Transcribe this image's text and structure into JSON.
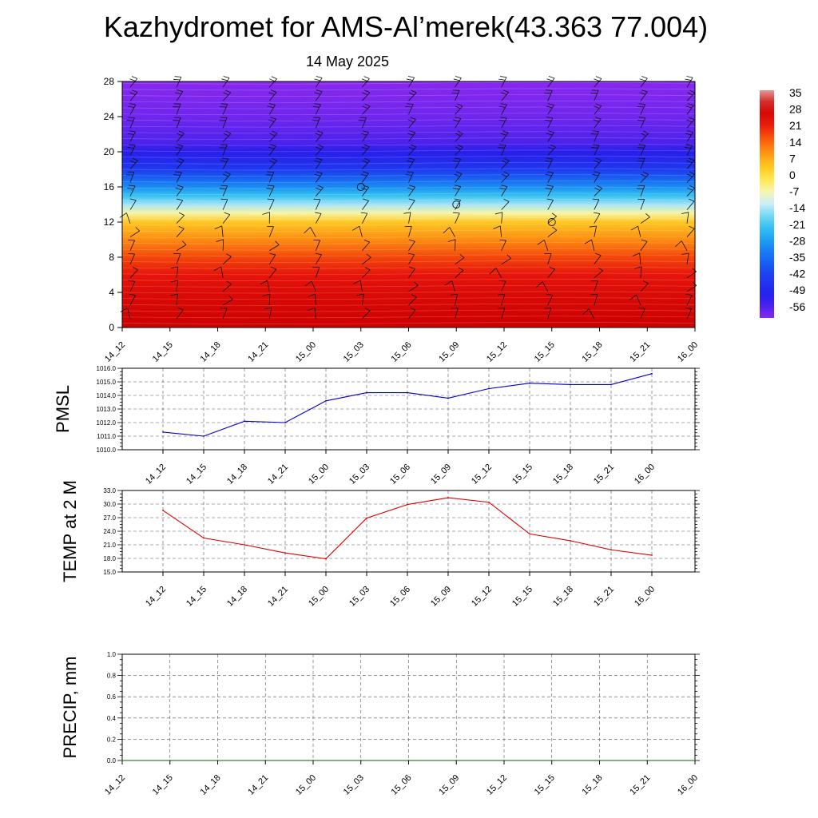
{
  "title": "Kazhydromet for AMS-Al’merek(43.363 77.004)",
  "subtitle": "14 May 2025",
  "time_labels": [
    "14_12",
    "14_15",
    "14_18",
    "14_21",
    "15_00",
    "15_03",
    "15_06",
    "15_09",
    "15_12",
    "15_15",
    "15_18",
    "15_21",
    "16_00"
  ],
  "chart_data": [
    {
      "type": "heatmap",
      "panel": "vertical temperature cross-section with wind barbs",
      "x": [
        "14_12",
        "14_15",
        "14_18",
        "14_21",
        "15_00",
        "15_03",
        "15_06",
        "15_09",
        "15_12",
        "15_15",
        "15_18",
        "15_21",
        "16_00"
      ],
      "ylim": [
        0,
        28
      ],
      "y_ticks": [
        "0",
        "4",
        "8",
        "12",
        "16",
        "20",
        "24",
        "28"
      ],
      "colorbar_labels": [
        "35",
        "28",
        "21",
        "14",
        "7",
        "0",
        "-7",
        "-14",
        "-21",
        "-28",
        "-35",
        "-42",
        "-49",
        "-56"
      ],
      "colorbar_range": [
        -63,
        35
      ],
      "temperature_profile": [
        {
          "y": 0,
          "value": 28
        },
        {
          "y": 2,
          "value": 26
        },
        {
          "y": 4,
          "value": 24
        },
        {
          "y": 6,
          "value": 21
        },
        {
          "y": 8,
          "value": 16
        },
        {
          "y": 10,
          "value": 9
        },
        {
          "y": 12,
          "value": 2
        },
        {
          "y": 13,
          "value": -8
        },
        {
          "y": 14,
          "value": -16
        },
        {
          "y": 15,
          "value": -24
        },
        {
          "y": 16,
          "value": -32
        },
        {
          "y": 17,
          "value": -39
        },
        {
          "y": 18,
          "value": -46
        },
        {
          "y": 19,
          "value": -51
        },
        {
          "y": 20,
          "value": -55
        },
        {
          "y": 21,
          "value": -58
        },
        {
          "y": 22,
          "value": -59
        },
        {
          "y": 24,
          "value": -61
        },
        {
          "y": 26,
          "value": -62
        },
        {
          "y": 28,
          "value": -63
        }
      ],
      "calm_markers": [
        {
          "x": "15_03",
          "y": 16
        },
        {
          "x": "15_09",
          "y": 14
        },
        {
          "x": "15_15",
          "y": 12
        }
      ],
      "colors": {
        "hot": "#cc0000",
        "yellow": "#ffee33",
        "cyan": "#33bbee",
        "blue": "#2222ee",
        "purple": "#8833ee"
      }
    },
    {
      "type": "line",
      "ylabel": "PMSL",
      "x": [
        "14_12",
        "14_15",
        "14_18",
        "14_21",
        "15_00",
        "15_03",
        "15_06",
        "15_09",
        "15_12",
        "15_15",
        "15_18",
        "15_21",
        "16_00"
      ],
      "values": [
        1011.3,
        1011.0,
        1012.1,
        1012.0,
        1013.6,
        1014.2,
        1014.2,
        1013.8,
        1014.5,
        1014.9,
        1014.8,
        1014.8,
        1015.6
      ],
      "ylim": [
        1010.0,
        1016.0
      ],
      "y_ticks": [
        "1010.0",
        "1011.0",
        "1012.0",
        "1013.0",
        "1014.0",
        "1015.0",
        "1016.0"
      ],
      "color": "#0000cc",
      "grid": true
    },
    {
      "type": "line",
      "ylabel": "TEMP at 2 M",
      "x": [
        "14_12",
        "14_15",
        "14_18",
        "14_21",
        "15_00",
        "15_03",
        "15_06",
        "15_09",
        "15_12",
        "15_15",
        "15_18",
        "15_21",
        "16_00"
      ],
      "values": [
        28.6,
        22.5,
        21.0,
        19.2,
        17.9,
        26.9,
        29.9,
        31.4,
        30.4,
        23.4,
        21.9,
        19.9,
        18.7
      ],
      "ylim": [
        15.0,
        33.0
      ],
      "y_ticks": [
        "15.0",
        "18.0",
        "21.0",
        "24.0",
        "27.0",
        "30.0",
        "33.0"
      ],
      "color": "#dd0000",
      "grid": true
    },
    {
      "type": "line",
      "ylabel": "PRECIP, mm",
      "x": [
        "14_12",
        "14_15",
        "14_18",
        "14_21",
        "15_00",
        "15_03",
        "15_06",
        "15_09",
        "15_12",
        "15_15",
        "15_18",
        "15_21",
        "16_00"
      ],
      "values": [
        0,
        0,
        0,
        0,
        0,
        0,
        0,
        0,
        0,
        0,
        0,
        0,
        0
      ],
      "ylim": [
        0.0,
        1.0
      ],
      "y_ticks": [
        "0.0",
        "0.2",
        "0.4",
        "0.6",
        "0.8",
        "1.0"
      ],
      "color": "#006600",
      "grid": true
    }
  ]
}
